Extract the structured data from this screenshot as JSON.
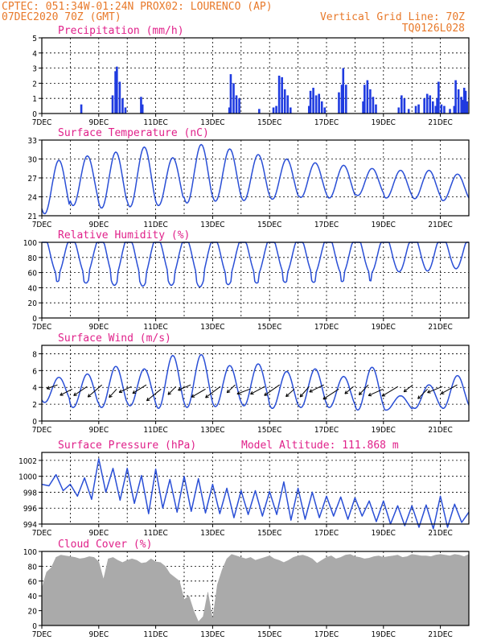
{
  "header": {
    "line1_left": "CPTEC:   051:34W-01:24N   PROX02: LOURENCO (AP)",
    "line2_left": "07DEC2020 70Z (GMT)",
    "line2_right": "Vertical Grid Line: 70Z",
    "line3_right": "TQ0126L028",
    "title_color": "#e8792a"
  },
  "colors": {
    "line": "#2a4fd6",
    "bars": "#1f3be0",
    "cloud": "#aaaaaa",
    "panel_title": "#e0218a"
  },
  "chart_data": [
    {
      "type": "bar",
      "title": "Precipitation (mm/h)",
      "ylim": [
        0,
        5
      ],
      "yticks": [
        "0",
        "1",
        "2",
        "3",
        "4",
        "5"
      ],
      "xticks": [
        "7DEC",
        "9DEC",
        "11DEC",
        "13DEC",
        "15DEC",
        "17DEC",
        "19DEC",
        "21DEC"
      ],
      "grid": "horizontal dashed",
      "series": [
        {
          "values": [
            [
              1.35,
              0.6
            ],
            [
              2.45,
              1.2
            ],
            [
              2.55,
              2.8
            ],
            [
              2.6,
              3.1
            ],
            [
              2.7,
              2.1
            ],
            [
              2.8,
              1.0
            ],
            [
              2.9,
              0.4
            ],
            [
              3.45,
              1.1
            ],
            [
              3.5,
              0.6
            ],
            [
              6.55,
              0.4
            ],
            [
              6.6,
              2.6
            ],
            [
              6.7,
              2.0
            ],
            [
              6.8,
              1.2
            ],
            [
              6.9,
              1.0
            ],
            [
              7.6,
              0.3
            ],
            [
              8.1,
              0.4
            ],
            [
              8.2,
              0.5
            ],
            [
              8.3,
              2.5
            ],
            [
              8.4,
              2.4
            ],
            [
              8.5,
              1.6
            ],
            [
              8.6,
              1.2
            ],
            [
              8.7,
              0.4
            ],
            [
              9.35,
              0.5
            ],
            [
              9.4,
              1.5
            ],
            [
              9.5,
              1.7
            ],
            [
              9.6,
              1.2
            ],
            [
              9.7,
              1.3
            ],
            [
              9.8,
              0.8
            ],
            [
              9.9,
              0.4
            ],
            [
              10.4,
              1.4
            ],
            [
              10.5,
              1.9
            ],
            [
              10.55,
              3.0
            ],
            [
              10.65,
              1.9
            ],
            [
              11.25,
              0.8
            ],
            [
              11.3,
              1.9
            ],
            [
              11.4,
              2.2
            ],
            [
              11.5,
              1.6
            ],
            [
              11.6,
              1.1
            ],
            [
              11.7,
              0.6
            ],
            [
              12.5,
              0.4
            ],
            [
              12.6,
              1.2
            ],
            [
              12.7,
              1.0
            ],
            [
              12.85,
              0.3
            ],
            [
              13.1,
              0.5
            ],
            [
              13.2,
              0.6
            ],
            [
              13.4,
              1.0
            ],
            [
              13.5,
              1.3
            ],
            [
              13.6,
              1.2
            ],
            [
              13.7,
              0.8
            ],
            [
              13.8,
              0.5
            ],
            [
              13.85,
              1.0
            ],
            [
              13.9,
              2.1
            ],
            [
              14.0,
              0.6
            ],
            [
              14.1,
              0.5
            ],
            [
              14.3,
              0.3
            ],
            [
              14.45,
              0.5
            ],
            [
              14.5,
              2.2
            ],
            [
              14.6,
              1.6
            ],
            [
              14.7,
              1.1
            ],
            [
              14.75,
              0.9
            ],
            [
              14.8,
              1.7
            ],
            [
              14.85,
              1.5
            ],
            [
              14.9,
              0.8
            ]
          ]
        }
      ]
    },
    {
      "type": "line",
      "title": "Surface Temperature (nC)",
      "ylim": [
        21,
        33
      ],
      "yticks": [
        "21",
        "24",
        "27",
        "30",
        "33"
      ],
      "xticks": [
        "7DEC",
        "9DEC",
        "11DEC",
        "13DEC",
        "15DEC",
        "17DEC",
        "19DEC",
        "21DEC"
      ],
      "series": [
        {
          "min": [
            21.3,
            22.6,
            22.2,
            22.4,
            22.6,
            23.0,
            23.3,
            23.4,
            23.6,
            23.9,
            23.8,
            24.2,
            23.8,
            23.7,
            23.4
          ],
          "max": [
            29.8,
            30.5,
            31.1,
            31.9,
            30.2,
            32.3,
            31.6,
            30.7,
            30.0,
            29.4,
            29.0,
            28.5,
            28.2,
            28.2,
            27.6
          ]
        }
      ]
    },
    {
      "type": "line",
      "title": "Relative Humidity (%)",
      "ylim": [
        0,
        100
      ],
      "yticks": [
        "0",
        "20",
        "40",
        "60",
        "80",
        "100"
      ],
      "xticks": [
        "7DEC",
        "9DEC",
        "11DEC",
        "13DEC",
        "15DEC",
        "17DEC",
        "19DEC",
        "21DEC"
      ],
      "series": [
        {
          "min": [
            48,
            46,
            43,
            42,
            43,
            41,
            44,
            46,
            47,
            47,
            48,
            49,
            51,
            52,
            55
          ],
          "max": [
            100,
            97,
            99,
            98,
            97,
            96,
            97,
            98,
            99,
            98,
            100,
            100,
            100,
            100,
            100
          ]
        }
      ]
    },
    {
      "type": "line",
      "title": "Surface Wind (m/s)",
      "ylim": [
        0,
        9
      ],
      "yticks": [
        "0",
        "2",
        "4",
        "6",
        "8"
      ],
      "xticks": [
        "7DEC",
        "9DEC",
        "11DEC",
        "13DEC",
        "15DEC",
        "17DEC",
        "19DEC",
        "21DEC"
      ],
      "series": [
        {
          "min": [
            2.2,
            1.6,
            1.6,
            1.8,
            1.5,
            1.6,
            1.7,
            1.8,
            1.5,
            1.6,
            1.6,
            1.3,
            1.3,
            1.5,
            1.5
          ],
          "max": [
            5.2,
            5.6,
            6.5,
            6.2,
            7.8,
            7.9,
            6.6,
            6.8,
            5.9,
            6.2,
            5.3,
            6.4,
            3.0,
            4.3,
            5.4
          ]
        }
      ],
      "wind_barbs": "arrows pointing toward the southwest"
    },
    {
      "type": "line",
      "title": "Surface Pressure (hPa)",
      "annotation": "Model Altitude: 111.868  m",
      "ylim": [
        994,
        1003
      ],
      "yticks": [
        "994",
        "996",
        "998",
        "1000",
        "1002"
      ],
      "xticks": [
        "7DEC",
        "9DEC",
        "11DEC",
        "13DEC",
        "15DEC",
        "17DEC",
        "19DEC",
        "21DEC"
      ],
      "series": [
        {
          "values": [
            999.0,
            998.8,
            1000.2,
            998.2,
            999.0,
            997.5,
            999.8,
            997.1,
            1002.2,
            998.0,
            1001.0,
            997.0,
            1001.0,
            996.6,
            1000.1,
            995.3,
            1000.9,
            996.0,
            999.6,
            995.5,
            1000.0,
            995.6,
            999.7,
            995.4,
            999.0,
            995.3,
            998.5,
            994.8,
            998.2,
            995.2,
            998.2,
            995.0,
            998.1,
            995.2,
            999.3,
            994.5,
            998.5,
            994.6,
            998.0,
            994.8,
            997.5,
            995.0,
            997.4,
            994.6,
            997.3,
            995.0,
            996.9,
            994.3,
            996.9,
            994.0,
            996.3,
            993.8,
            996.3,
            993.6,
            996.4,
            993.4,
            997.5,
            993.6,
            996.5,
            994.2,
            995.5
          ]
        }
      ]
    },
    {
      "type": "area",
      "title": "Cloud Cover (%)",
      "ylim": [
        0,
        100
      ],
      "yticks": [
        "0",
        "20",
        "40",
        "60",
        "80",
        "100"
      ],
      "xticks": [
        "7DEC",
        "9DEC",
        "11DEC",
        "13DEC",
        "15DEC",
        "17DEC",
        "19DEC",
        "21DEC"
      ],
      "series": [
        {
          "values": [
            50,
            72,
            78,
            92,
            95,
            94,
            93,
            92,
            90,
            91,
            93,
            92,
            86,
            62,
            90,
            92,
            88,
            85,
            88,
            90,
            88,
            84,
            85,
            90,
            86,
            85,
            80,
            70,
            65,
            60,
            35,
            40,
            20,
            5,
            12,
            45,
            8,
            55,
            75,
            90,
            96,
            94,
            92,
            90,
            92,
            88,
            90,
            92,
            94,
            90,
            88,
            85,
            88,
            92,
            94,
            95,
            93,
            90,
            84,
            88,
            92,
            94,
            90,
            92,
            95,
            96,
            93,
            92,
            90,
            91,
            93,
            94,
            92,
            93,
            94,
            95,
            92,
            93,
            96,
            95,
            94,
            94,
            93,
            95,
            96,
            95,
            94,
            96,
            95,
            93,
            96
          ]
        }
      ]
    }
  ]
}
